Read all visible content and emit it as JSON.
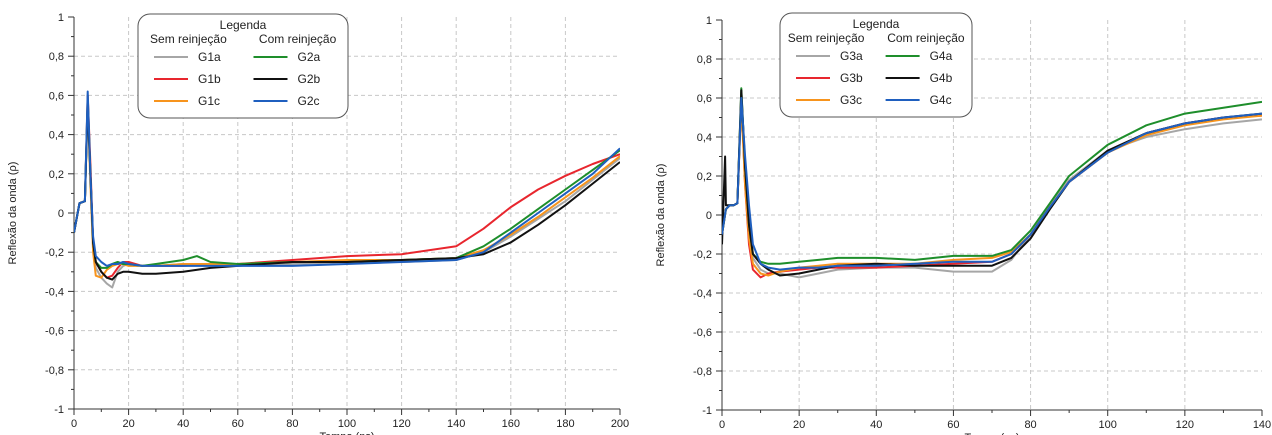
{
  "chart_data": [
    {
      "type": "line",
      "xlabel": "Tempo (ns)",
      "ylabel": "Reflexão da onda (ρ)",
      "xlim": [
        0,
        200
      ],
      "ylim": [
        -1,
        1
      ],
      "xticks": [
        "0",
        "20",
        "40",
        "60",
        "80",
        "100",
        "120",
        "140",
        "160",
        "180",
        "200"
      ],
      "yticks": [
        "1",
        "0,8",
        "0,6",
        "0,4",
        "0,2",
        "0",
        "-0,2",
        "-0,4",
        "-0,6",
        "-0,8",
        "-1"
      ],
      "grid": true,
      "legend": {
        "title": "Legenda",
        "placement": "top-left",
        "group_left": "Sem reinjeção",
        "group_right": "Com reinjeção"
      },
      "series": [
        {
          "name": "G1a",
          "color": "#a6a6a6",
          "group": "left",
          "x": [
            0,
            2,
            4,
            5,
            6,
            7,
            8,
            10,
            12,
            14,
            16,
            18,
            20,
            25,
            30,
            40,
            50,
            60,
            80,
            100,
            120,
            140,
            150,
            160,
            170,
            180,
            190,
            200
          ],
          "y": [
            -0.1,
            0.05,
            0.06,
            0.6,
            0.2,
            -0.15,
            -0.28,
            -0.33,
            -0.36,
            -0.38,
            -0.3,
            -0.27,
            -0.26,
            -0.27,
            -0.27,
            -0.26,
            -0.26,
            -0.26,
            -0.26,
            -0.25,
            -0.25,
            -0.24,
            -0.2,
            -0.12,
            -0.03,
            0.06,
            0.17,
            0.28
          ]
        },
        {
          "name": "G1b",
          "color": "#e8262e",
          "group": "left",
          "x": [
            0,
            2,
            4,
            5,
            6,
            7,
            8,
            10,
            12,
            14,
            16,
            18,
            20,
            25,
            30,
            40,
            50,
            60,
            80,
            100,
            120,
            140,
            150,
            160,
            170,
            180,
            190,
            200
          ],
          "y": [
            -0.1,
            0.05,
            0.06,
            0.6,
            0.25,
            -0.15,
            -0.25,
            -0.3,
            -0.33,
            -0.32,
            -0.28,
            -0.25,
            -0.25,
            -0.27,
            -0.27,
            -0.27,
            -0.26,
            -0.26,
            -0.24,
            -0.22,
            -0.21,
            -0.17,
            -0.08,
            0.03,
            0.12,
            0.19,
            0.25,
            0.3
          ]
        },
        {
          "name": "G1c",
          "color": "#f7941d",
          "group": "left",
          "x": [
            0,
            2,
            4,
            5,
            6,
            7,
            8,
            10,
            12,
            14,
            16,
            18,
            20,
            25,
            30,
            40,
            50,
            60,
            80,
            100,
            120,
            140,
            150,
            160,
            170,
            180,
            190,
            200
          ],
          "y": [
            -0.1,
            0.05,
            0.06,
            0.55,
            0.15,
            -0.2,
            -0.32,
            -0.33,
            -0.29,
            -0.27,
            -0.26,
            -0.26,
            -0.27,
            -0.27,
            -0.27,
            -0.26,
            -0.26,
            -0.26,
            -0.25,
            -0.24,
            -0.24,
            -0.23,
            -0.19,
            -0.11,
            -0.02,
            0.08,
            0.18,
            0.29
          ]
        },
        {
          "name": "G2a",
          "color": "#1e8e2b",
          "group": "right",
          "x": [
            0,
            2,
            4,
            5,
            6,
            7,
            8,
            10,
            12,
            14,
            16,
            18,
            20,
            25,
            30,
            40,
            45,
            50,
            60,
            80,
            100,
            120,
            140,
            150,
            160,
            170,
            180,
            190,
            200
          ],
          "y": [
            -0.1,
            0.05,
            0.06,
            0.58,
            0.2,
            -0.15,
            -0.25,
            -0.28,
            -0.28,
            -0.26,
            -0.25,
            -0.26,
            -0.26,
            -0.27,
            -0.26,
            -0.24,
            -0.22,
            -0.25,
            -0.26,
            -0.25,
            -0.25,
            -0.24,
            -0.23,
            -0.17,
            -0.08,
            0.02,
            0.12,
            0.22,
            0.32
          ]
        },
        {
          "name": "G2b",
          "color": "#111111",
          "group": "right",
          "x": [
            0,
            2,
            4,
            5,
            6,
            7,
            8,
            10,
            12,
            14,
            16,
            18,
            20,
            25,
            30,
            40,
            50,
            60,
            80,
            100,
            120,
            140,
            150,
            160,
            170,
            180,
            190,
            200
          ],
          "y": [
            -0.1,
            0.05,
            0.06,
            0.56,
            0.2,
            -0.15,
            -0.25,
            -0.3,
            -0.33,
            -0.34,
            -0.31,
            -0.3,
            -0.3,
            -0.31,
            -0.31,
            -0.3,
            -0.28,
            -0.27,
            -0.25,
            -0.25,
            -0.24,
            -0.23,
            -0.21,
            -0.15,
            -0.06,
            0.04,
            0.15,
            0.26
          ]
        },
        {
          "name": "G2c",
          "color": "#1f5fbf",
          "group": "right",
          "x": [
            0,
            2,
            4,
            5,
            6,
            7,
            8,
            10,
            12,
            14,
            16,
            18,
            20,
            25,
            30,
            40,
            50,
            60,
            80,
            100,
            120,
            140,
            150,
            160,
            170,
            180,
            190,
            200
          ],
          "y": [
            -0.1,
            0.05,
            0.06,
            0.62,
            0.2,
            -0.12,
            -0.22,
            -0.25,
            -0.27,
            -0.26,
            -0.26,
            -0.25,
            -0.26,
            -0.27,
            -0.27,
            -0.27,
            -0.27,
            -0.27,
            -0.27,
            -0.26,
            -0.25,
            -0.24,
            -0.2,
            -0.1,
            0,
            0.1,
            0.2,
            0.33
          ]
        }
      ]
    },
    {
      "type": "line",
      "xlabel": "Tempo (ns)",
      "ylabel": "Reflexão da onda (ρ)",
      "xlim": [
        0,
        140
      ],
      "ylim": [
        -1,
        1
      ],
      "xticks": [
        "0",
        "20",
        "40",
        "60",
        "80",
        "100",
        "120",
        "140"
      ],
      "yticks": [
        "1",
        "0,8",
        "0,6",
        "0,4",
        "0,2",
        "0",
        "-0,2",
        "-0,4",
        "-0,6",
        "-0,8",
        "-1"
      ],
      "grid": true,
      "legend": {
        "title": "Legenda",
        "placement": "top-center",
        "group_left": "Sem reinjeção",
        "group_right": "Com reinjeção"
      },
      "series": [
        {
          "name": "G3a",
          "color": "#a6a6a6",
          "group": "left",
          "x": [
            0,
            1,
            2,
            3,
            4,
            5,
            6,
            7,
            8,
            10,
            12,
            15,
            20,
            25,
            30,
            40,
            50,
            60,
            70,
            75,
            80,
            85,
            90,
            100,
            110,
            120,
            130,
            140
          ],
          "y": [
            -0.1,
            0.03,
            0.05,
            0.05,
            0.06,
            0.6,
            0.2,
            -0.1,
            -0.22,
            -0.28,
            -0.3,
            -0.3,
            -0.32,
            -0.3,
            -0.28,
            -0.27,
            -0.27,
            -0.29,
            -0.29,
            -0.23,
            -0.1,
            0.05,
            0.18,
            0.33,
            0.4,
            0.44,
            0.47,
            0.49
          ]
        },
        {
          "name": "G3b",
          "color": "#e8262e",
          "group": "left",
          "x": [
            0,
            1,
            2,
            3,
            4,
            5,
            6,
            7,
            8,
            10,
            12,
            15,
            20,
            25,
            30,
            40,
            50,
            60,
            70,
            75,
            80,
            85,
            90,
            100,
            110,
            120,
            130,
            140
          ],
          "y": [
            -0.1,
            0.03,
            0.05,
            0.05,
            0.06,
            0.6,
            0.15,
            -0.15,
            -0.28,
            -0.32,
            -0.3,
            -0.29,
            -0.28,
            -0.27,
            -0.27,
            -0.27,
            -0.26,
            -0.25,
            -0.24,
            -0.2,
            -0.1,
            0.04,
            0.17,
            0.32,
            0.42,
            0.47,
            0.5,
            0.51
          ]
        },
        {
          "name": "G3c",
          "color": "#f7941d",
          "group": "left",
          "x": [
            0,
            1,
            2,
            3,
            4,
            5,
            6,
            7,
            8,
            10,
            12,
            15,
            20,
            25,
            30,
            40,
            50,
            60,
            70,
            75,
            80,
            85,
            90,
            100,
            110,
            120,
            130,
            140
          ],
          "y": [
            -0.1,
            0.03,
            0.05,
            0.05,
            0.06,
            0.58,
            0.15,
            -0.12,
            -0.25,
            -0.3,
            -0.31,
            -0.29,
            -0.27,
            -0.26,
            -0.25,
            -0.25,
            -0.25,
            -0.23,
            -0.22,
            -0.19,
            -0.1,
            0.04,
            0.17,
            0.32,
            0.41,
            0.46,
            0.49,
            0.51
          ]
        },
        {
          "name": "G4a",
          "color": "#1e8e2b",
          "group": "right",
          "x": [
            0,
            1,
            2,
            3,
            4,
            5,
            6,
            7,
            8,
            10,
            12,
            15,
            20,
            25,
            30,
            40,
            50,
            60,
            70,
            75,
            80,
            85,
            90,
            100,
            110,
            120,
            130,
            140
          ],
          "y": [
            -0.1,
            0.03,
            0.05,
            0.05,
            0.06,
            0.65,
            0.25,
            -0.05,
            -0.2,
            -0.24,
            -0.25,
            -0.25,
            -0.24,
            -0.23,
            -0.22,
            -0.22,
            -0.23,
            -0.21,
            -0.21,
            -0.18,
            -0.08,
            0.06,
            0.2,
            0.36,
            0.46,
            0.52,
            0.55,
            0.58
          ]
        },
        {
          "name": "G4b",
          "color": "#111111",
          "group": "right",
          "x": [
            0,
            0.8,
            1,
            1.2,
            2,
            3,
            4,
            5,
            6,
            7,
            8,
            10,
            12,
            15,
            20,
            25,
            30,
            40,
            50,
            60,
            70,
            75,
            80,
            85,
            90,
            100,
            110,
            120,
            130,
            140
          ],
          "y": [
            -0.15,
            0.3,
            0.05,
            0.05,
            0.05,
            0.05,
            0.06,
            0.64,
            0.25,
            -0.05,
            -0.2,
            -0.25,
            -0.28,
            -0.31,
            -0.3,
            -0.28,
            -0.26,
            -0.25,
            -0.26,
            -0.26,
            -0.26,
            -0.22,
            -0.12,
            0.03,
            0.17,
            0.33,
            0.42,
            0.47,
            0.5,
            0.52
          ]
        },
        {
          "name": "G4c",
          "color": "#1f5fbf",
          "group": "right",
          "x": [
            0,
            1,
            2,
            3,
            4,
            5,
            6,
            7,
            8,
            10,
            12,
            15,
            20,
            25,
            30,
            40,
            50,
            60,
            70,
            75,
            80,
            85,
            90,
            100,
            110,
            120,
            130,
            140
          ],
          "y": [
            -0.1,
            0.03,
            0.05,
            0.05,
            0.06,
            0.6,
            0.3,
            0.05,
            -0.15,
            -0.25,
            -0.27,
            -0.28,
            -0.27,
            -0.27,
            -0.26,
            -0.26,
            -0.25,
            -0.24,
            -0.24,
            -0.2,
            -0.1,
            0.04,
            0.17,
            0.32,
            0.42,
            0.47,
            0.5,
            0.52
          ]
        }
      ]
    }
  ]
}
